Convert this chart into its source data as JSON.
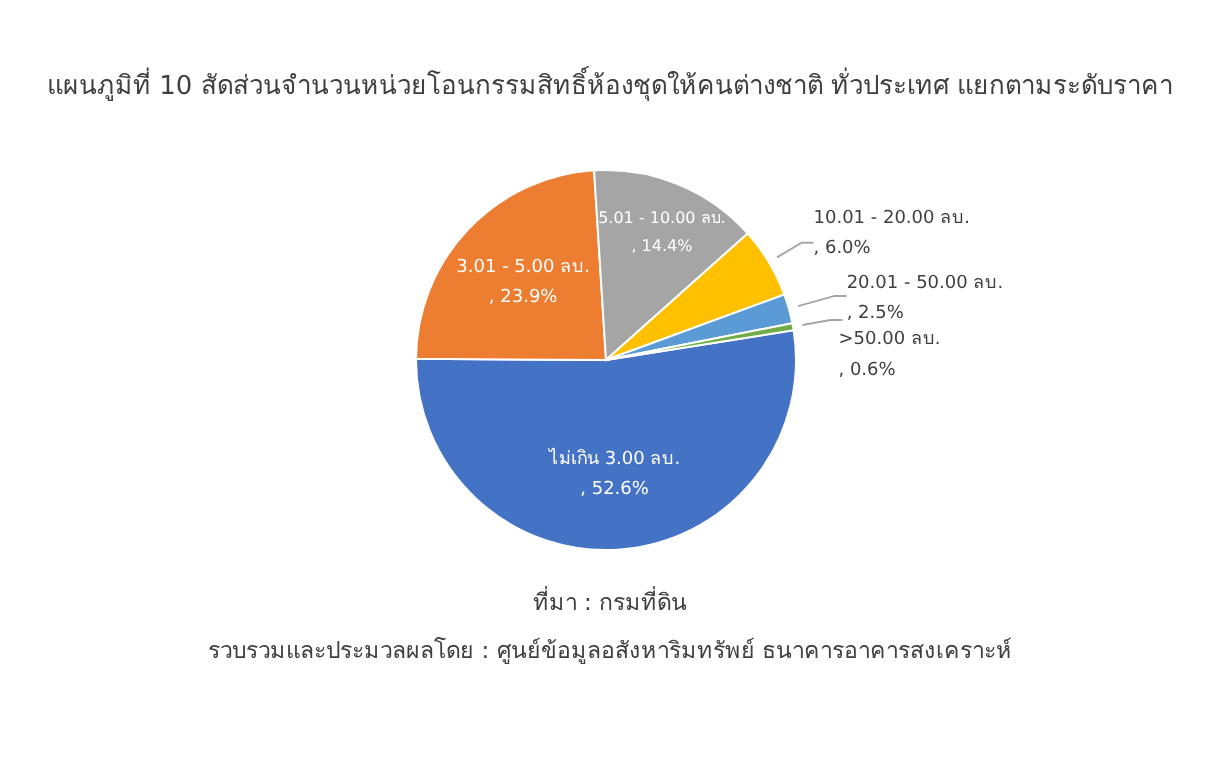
{
  "chart_data": {
    "type": "pie",
    "title": "แผนภูมิที่ 10 สัดส่วนจำนวนหน่วยโอนกรรมสิทธิ์ห้องชุดให้คนต่างชาติ ทั่วประเทศ แยกตามระดับราคา",
    "categories": [
      "ไม่เกิน 3.00 ลบ.",
      "3.01 - 5.00 ลบ.",
      "5.01 - 10.00 ลบ.",
      "10.01 - 20.00 ลบ.",
      "20.01 - 50.00 ลบ.",
      ">50.00 ลบ."
    ],
    "values": [
      52.6,
      23.9,
      14.4,
      6.0,
      2.5,
      0.6
    ],
    "colors": [
      "#4472c4",
      "#ed7d31",
      "#a5a5a5",
      "#ffc000",
      "#5b9bd5",
      "#70ad47"
    ],
    "value_labels": [
      ", 52.6%",
      ", 23.9%",
      ", 14.4%",
      ", 6.0%",
      ", 2.5%",
      ", 0.6%"
    ],
    "annotations": [
      "ที่มา : กรมที่ดิน",
      "รวบรวมและประมวลผลโดย : ศูนย์ข้อมูลอสังหาริมทรัพย์ ธนาคารอาคารสงเคราะห์"
    ]
  }
}
